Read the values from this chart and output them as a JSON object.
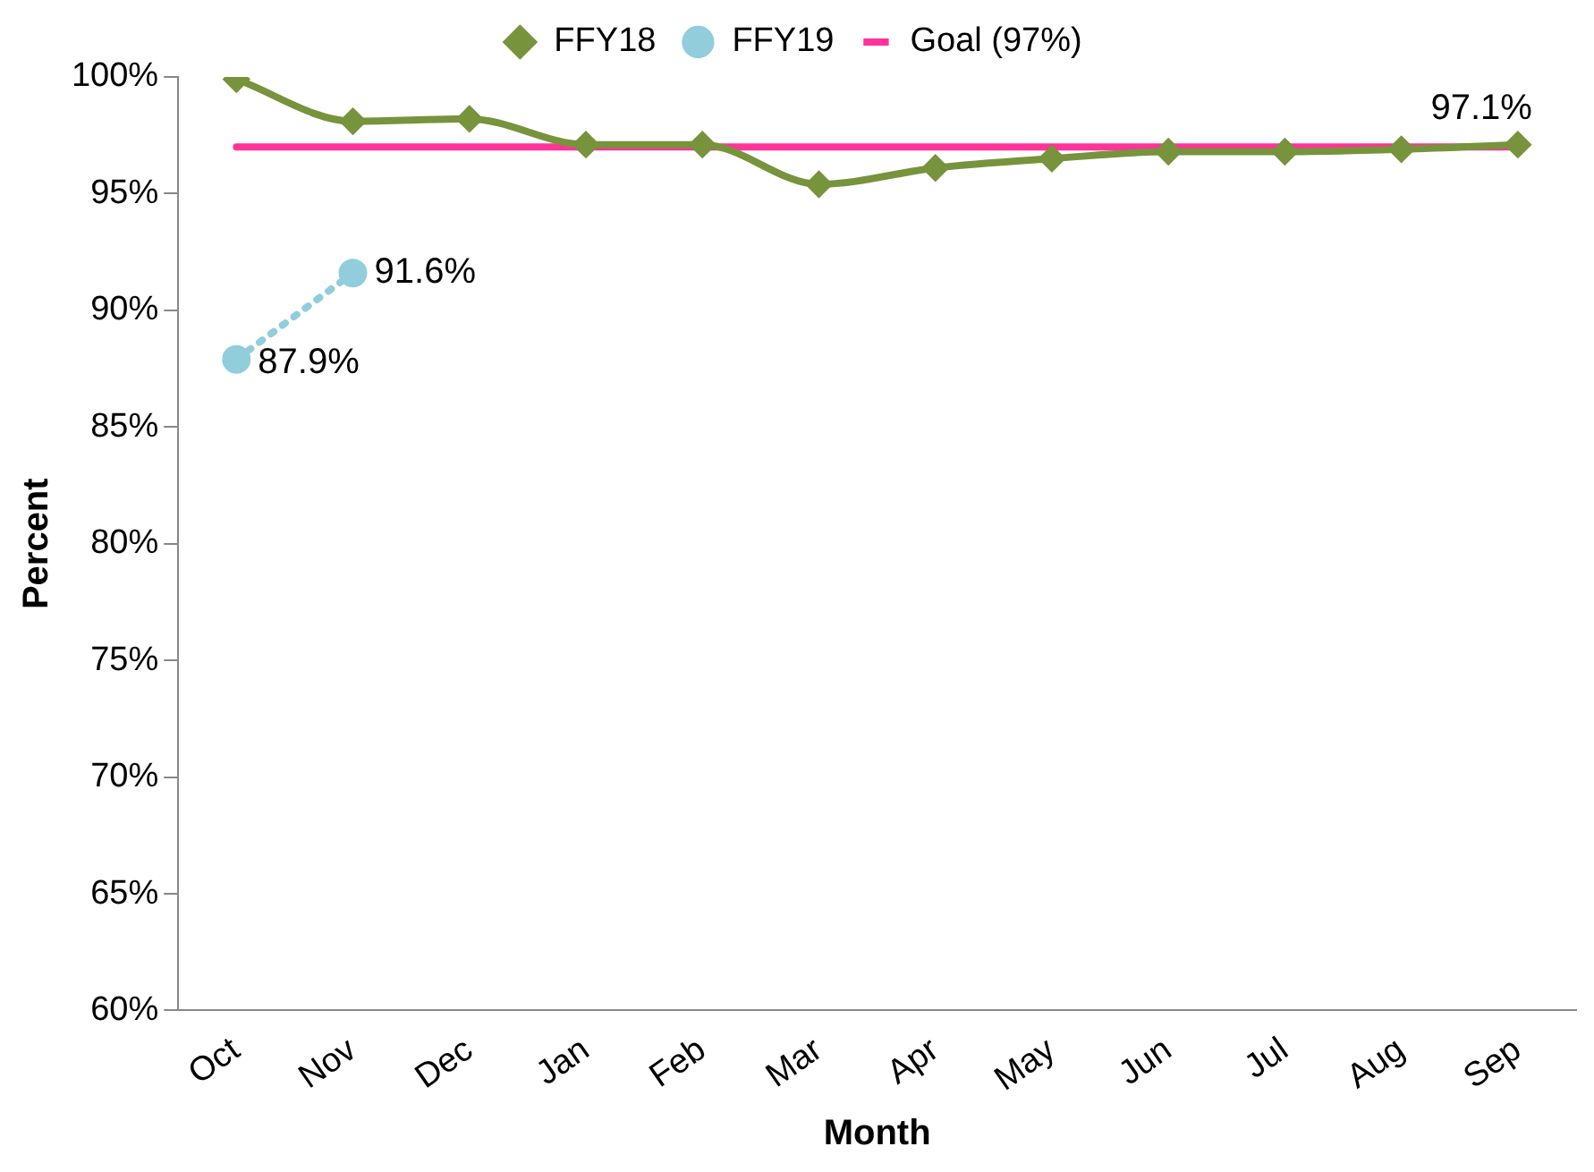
{
  "chart_data": {
    "type": "line",
    "xlabel": "Month",
    "ylabel": "Percent",
    "categories": [
      "Oct",
      "Nov",
      "Dec",
      "Jan",
      "Feb",
      "Mar",
      "Apr",
      "May",
      "Jun",
      "Jul",
      "Aug",
      "Sep"
    ],
    "series": [
      {
        "name": "FFY18",
        "color": "#77933c",
        "marker": "diamond",
        "line_style": "solid",
        "values": [
          99.9,
          98.1,
          98.2,
          97.1,
          97.1,
          95.4,
          96.1,
          96.5,
          96.8,
          96.8,
          96.9,
          97.1
        ],
        "value_labels": [
          null,
          null,
          null,
          null,
          null,
          null,
          null,
          null,
          null,
          null,
          null,
          "97.1%"
        ]
      },
      {
        "name": "FFY19",
        "color": "#92cddc",
        "marker": "circle",
        "line_style": "dotted",
        "values": [
          87.9,
          91.6,
          null,
          null,
          null,
          null,
          null,
          null,
          null,
          null,
          null,
          null
        ],
        "value_labels": [
          "87.9%",
          "91.6%",
          null,
          null,
          null,
          null,
          null,
          null,
          null,
          null,
          null,
          null
        ]
      },
      {
        "name": "Goal (97%)",
        "color": "#ff3399",
        "marker": "none",
        "line_style": "solid",
        "values": [
          97,
          97,
          97,
          97,
          97,
          97,
          97,
          97,
          97,
          97,
          97,
          97
        ]
      }
    ],
    "ylim": [
      60,
      100
    ],
    "yticks": [
      {
        "value": 60,
        "label": "60%"
      },
      {
        "value": 65,
        "label": "65%"
      },
      {
        "value": 70,
        "label": "70%"
      },
      {
        "value": 75,
        "label": "75%"
      },
      {
        "value": 80,
        "label": "80%"
      },
      {
        "value": 85,
        "label": "85%"
      },
      {
        "value": 90,
        "label": "90%"
      },
      {
        "value": 95,
        "label": "95%"
      },
      {
        "value": 100,
        "label": "100%"
      }
    ],
    "grid": false,
    "legend": "top"
  }
}
